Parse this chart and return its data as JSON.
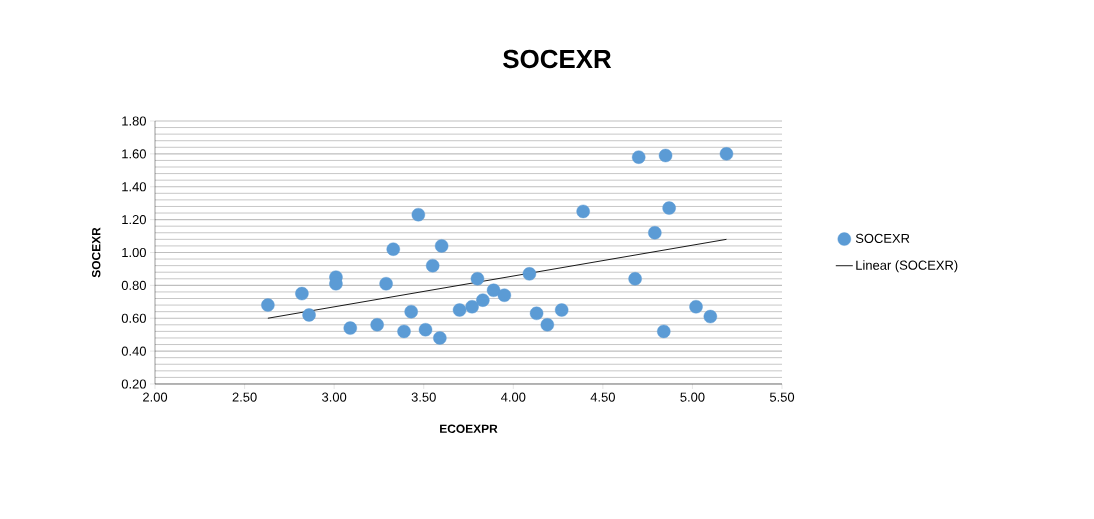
{
  "chart_data": {
    "type": "scatter",
    "title": "SOCEXR",
    "xlabel": "ECOEXPR",
    "ylabel": "SOCEXR",
    "xlim": [
      2.0,
      5.5
    ],
    "ylim": [
      0.2,
      1.8
    ],
    "xticks": [
      {
        "value": 2.0,
        "label": "2.00"
      },
      {
        "value": 2.5,
        "label": "2.50"
      },
      {
        "value": 3.0,
        "label": "3.00"
      },
      {
        "value": 3.5,
        "label": "3.50"
      },
      {
        "value": 4.0,
        "label": "4.00"
      },
      {
        "value": 4.5,
        "label": "4.50"
      },
      {
        "value": 5.0,
        "label": "5.00"
      },
      {
        "value": 5.5,
        "label": "5.50"
      }
    ],
    "yticks": [
      {
        "value": 0.2,
        "label": "0.20"
      },
      {
        "value": 0.4,
        "label": "0.40"
      },
      {
        "value": 0.6,
        "label": "0.60"
      },
      {
        "value": 0.8,
        "label": "0.80"
      },
      {
        "value": 1.0,
        "label": "1.00"
      },
      {
        "value": 1.2,
        "label": "1.20"
      },
      {
        "value": 1.4,
        "label": "1.40"
      },
      {
        "value": 1.6,
        "label": "1.60"
      },
      {
        "value": 1.8,
        "label": "1.80"
      }
    ],
    "grid": "y",
    "legend": "right",
    "series": [
      {
        "name": "SOCEXR",
        "marker": "circle",
        "color": "#5b9bd5",
        "x": [
          2.63,
          2.82,
          2.86,
          3.01,
          3.01,
          3.09,
          3.24,
          3.29,
          3.33,
          3.39,
          3.43,
          3.47,
          3.51,
          3.55,
          3.59,
          3.6,
          3.7,
          3.77,
          3.8,
          3.83,
          3.89,
          3.95,
          4.09,
          4.13,
          4.19,
          4.27,
          4.39,
          4.68,
          4.7,
          4.79,
          4.84,
          4.85,
          4.87,
          5.02,
          5.1,
          5.19
        ],
        "values": [
          0.68,
          0.75,
          0.62,
          0.85,
          0.81,
          0.54,
          0.56,
          0.81,
          1.02,
          0.52,
          0.64,
          1.23,
          0.53,
          0.92,
          0.48,
          1.04,
          0.65,
          0.67,
          0.84,
          0.71,
          0.77,
          0.74,
          0.87,
          0.63,
          0.56,
          0.65,
          1.25,
          0.84,
          1.58,
          1.12,
          0.52,
          1.59,
          1.27,
          0.67,
          0.61,
          1.6
        ]
      },
      {
        "name": "Linear (SOCEXR)",
        "type": "line",
        "color": "#000000",
        "marker": "none",
        "x": [
          2.63,
          5.19
        ],
        "values": [
          0.6,
          1.08
        ]
      }
    ]
  }
}
